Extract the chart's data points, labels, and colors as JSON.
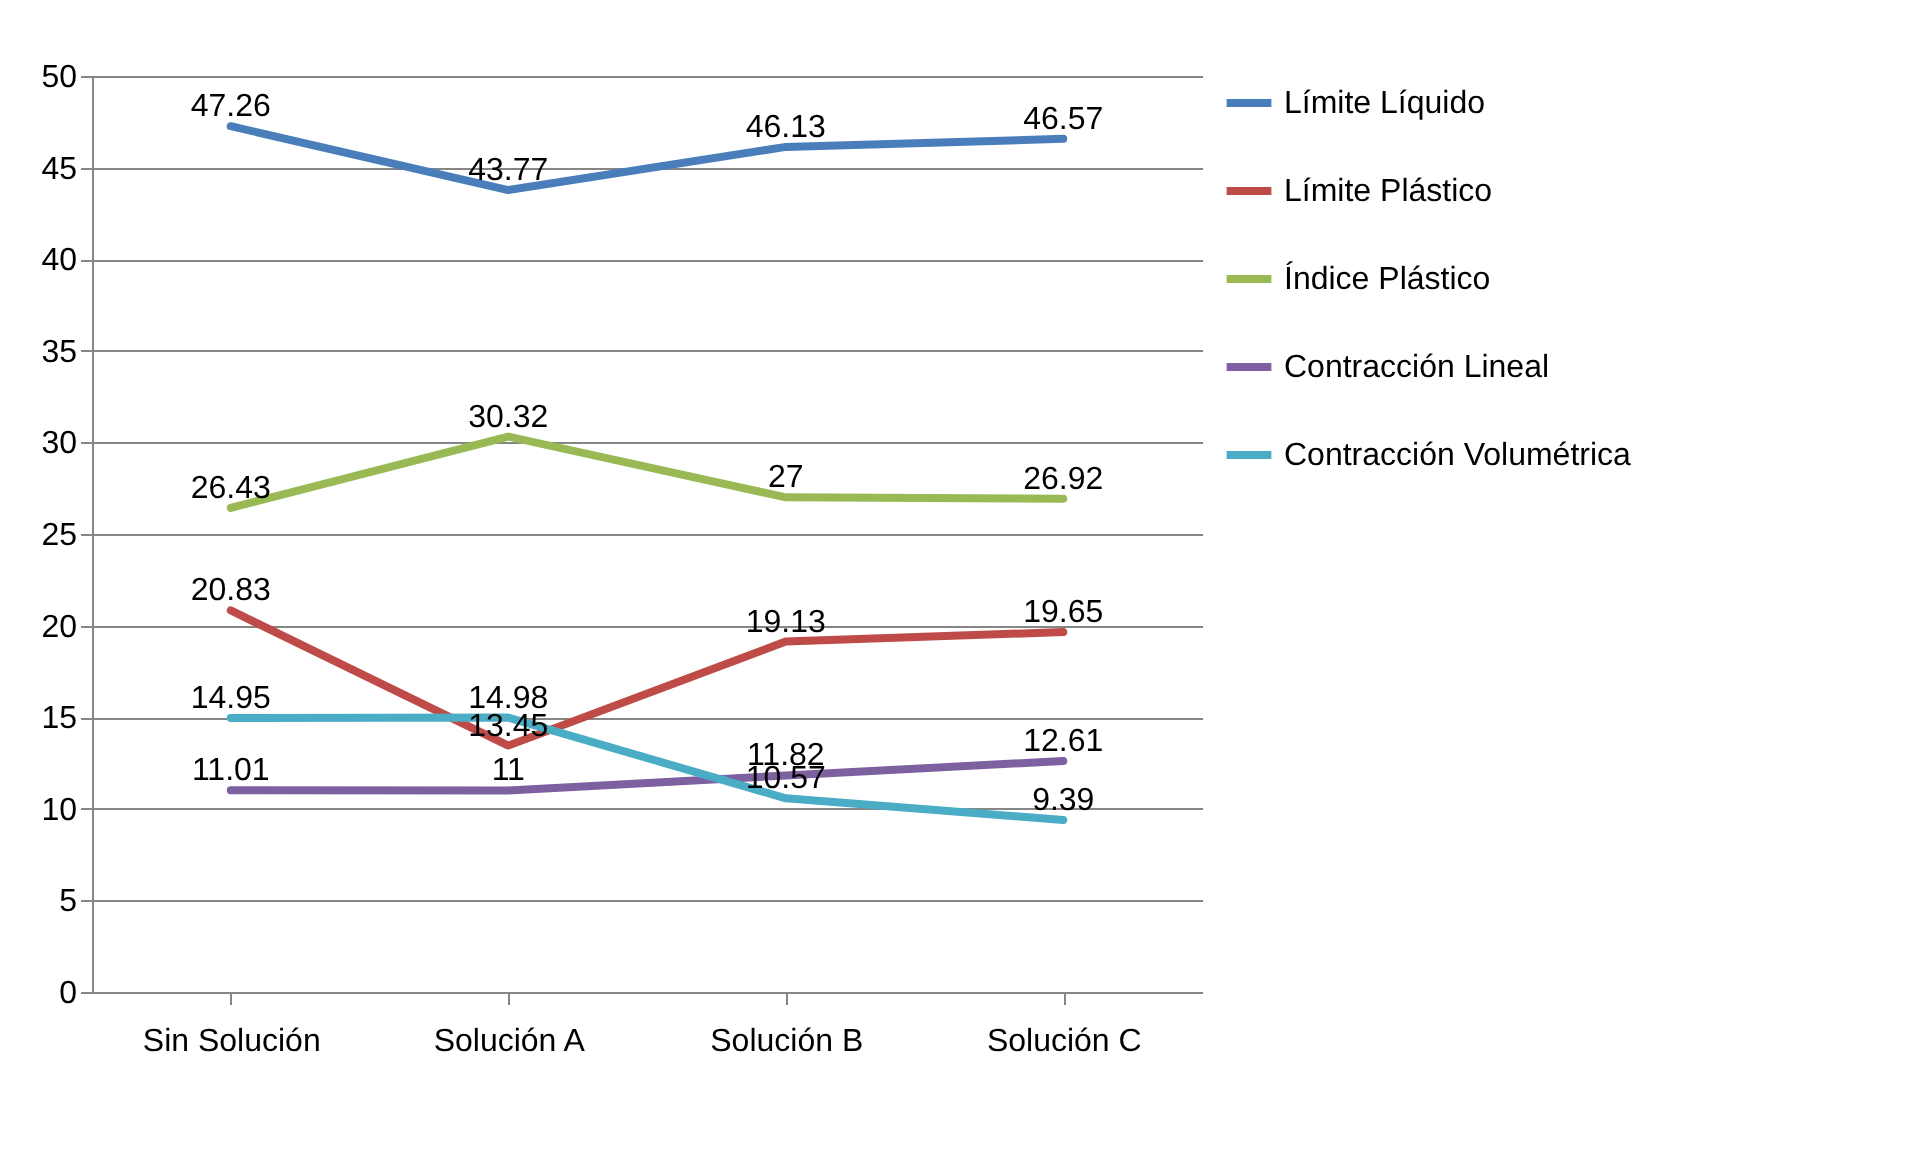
{
  "chart_data": {
    "type": "line",
    "categories": [
      "Sin Solución",
      "Solución A",
      "Solución B",
      "Solución C"
    ],
    "series": [
      {
        "name": "Límite Líquido",
        "color": "#4a7ebb",
        "values": [
          47.26,
          43.77,
          46.13,
          46.57
        ]
      },
      {
        "name": "Límite Plástico",
        "color": "#be4b48",
        "values": [
          20.83,
          13.45,
          19.13,
          19.65
        ]
      },
      {
        "name": "Índice Plástico",
        "color": "#98b954",
        "values": [
          26.43,
          30.32,
          27,
          26.92
        ]
      },
      {
        "name": "Contracción Lineal",
        "color": "#7d60a0",
        "values": [
          11.01,
          11,
          11.82,
          12.61
        ]
      },
      {
        "name": "Contracción Volumétrica",
        "color": "#4bacc6",
        "values": [
          14.95,
          14.98,
          10.57,
          9.39
        ]
      }
    ],
    "ylim": [
      0,
      50
    ],
    "yticks": [
      0,
      5,
      10,
      15,
      20,
      25,
      30,
      35,
      40,
      45,
      50
    ],
    "grid": "y",
    "legend": "right",
    "data_labels": true
  }
}
